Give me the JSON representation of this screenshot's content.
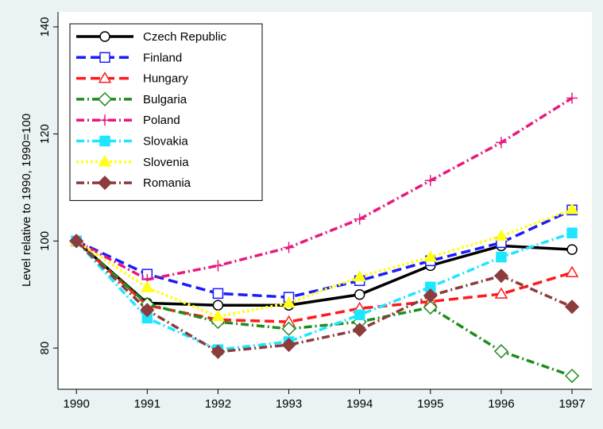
{
  "chart_data": {
    "type": "line",
    "y_label": "Level relative to 1990, 1990=100",
    "x": [
      1990,
      1991,
      1992,
      1993,
      1994,
      1995,
      1996,
      1997
    ],
    "xlim": [
      1989.74,
      1997.28
    ],
    "xticks": [
      1990,
      1991,
      1992,
      1993,
      1994,
      1995,
      1996,
      1997
    ],
    "ylim": [
      72.3,
      142.8
    ],
    "yticks": [
      80,
      100,
      120,
      140
    ],
    "legend": "top-left",
    "series": [
      {
        "name": "Czech Republic",
        "color": "#000000",
        "marker": "circle",
        "marker_fill": false,
        "dash": "solid",
        "values": [
          100,
          88.4,
          88,
          88,
          90,
          95.4,
          99.1,
          98.4
        ]
      },
      {
        "name": "Finland",
        "color": "#1a1aff",
        "marker": "square",
        "marker_fill": false,
        "dash": "dash",
        "values": [
          100,
          93.8,
          90.2,
          89.5,
          92.6,
          96.3,
          99.7,
          105.8
        ]
      },
      {
        "name": "Hungary",
        "color": "#ff1a1a",
        "marker": "triangle",
        "marker_fill": false,
        "dash": "dash",
        "values": [
          100,
          88,
          85.3,
          84.9,
          87.4,
          88.7,
          90.1,
          94.1
        ]
      },
      {
        "name": "Bulgaria",
        "color": "#1e8c1e",
        "marker": "diamond",
        "marker_fill": false,
        "dash": "dashdot",
        "values": [
          100,
          88.2,
          84.9,
          83.6,
          84.9,
          87.6,
          79.4,
          74.8
        ]
      },
      {
        "name": "Poland",
        "color": "#e8197f",
        "marker": "plus",
        "marker_fill": false,
        "dash": "dashdot",
        "values": [
          100,
          92.8,
          95.4,
          98.8,
          104.1,
          111.3,
          118.4,
          126.7
        ]
      },
      {
        "name": "Slovakia",
        "color": "#1ee6ff",
        "marker": "square",
        "marker_fill": true,
        "dash": "dashdot",
        "values": [
          100,
          85.6,
          79.7,
          81.2,
          86.2,
          91.4,
          97,
          101.5
        ]
      },
      {
        "name": "Slovenia",
        "color": "#ffff1a",
        "marker": "triangle",
        "marker_fill": true,
        "dash": "dot",
        "values": [
          100,
          91.3,
          85.9,
          88.4,
          93.3,
          97,
          100.9,
          105.9
        ]
      },
      {
        "name": "Romania",
        "color": "#8c3c3c",
        "marker": "diamond",
        "marker_fill": true,
        "dash": "dashdot",
        "values": [
          100,
          87.1,
          79.3,
          80.6,
          83.4,
          89.8,
          93.5,
          87.7
        ]
      }
    ]
  }
}
